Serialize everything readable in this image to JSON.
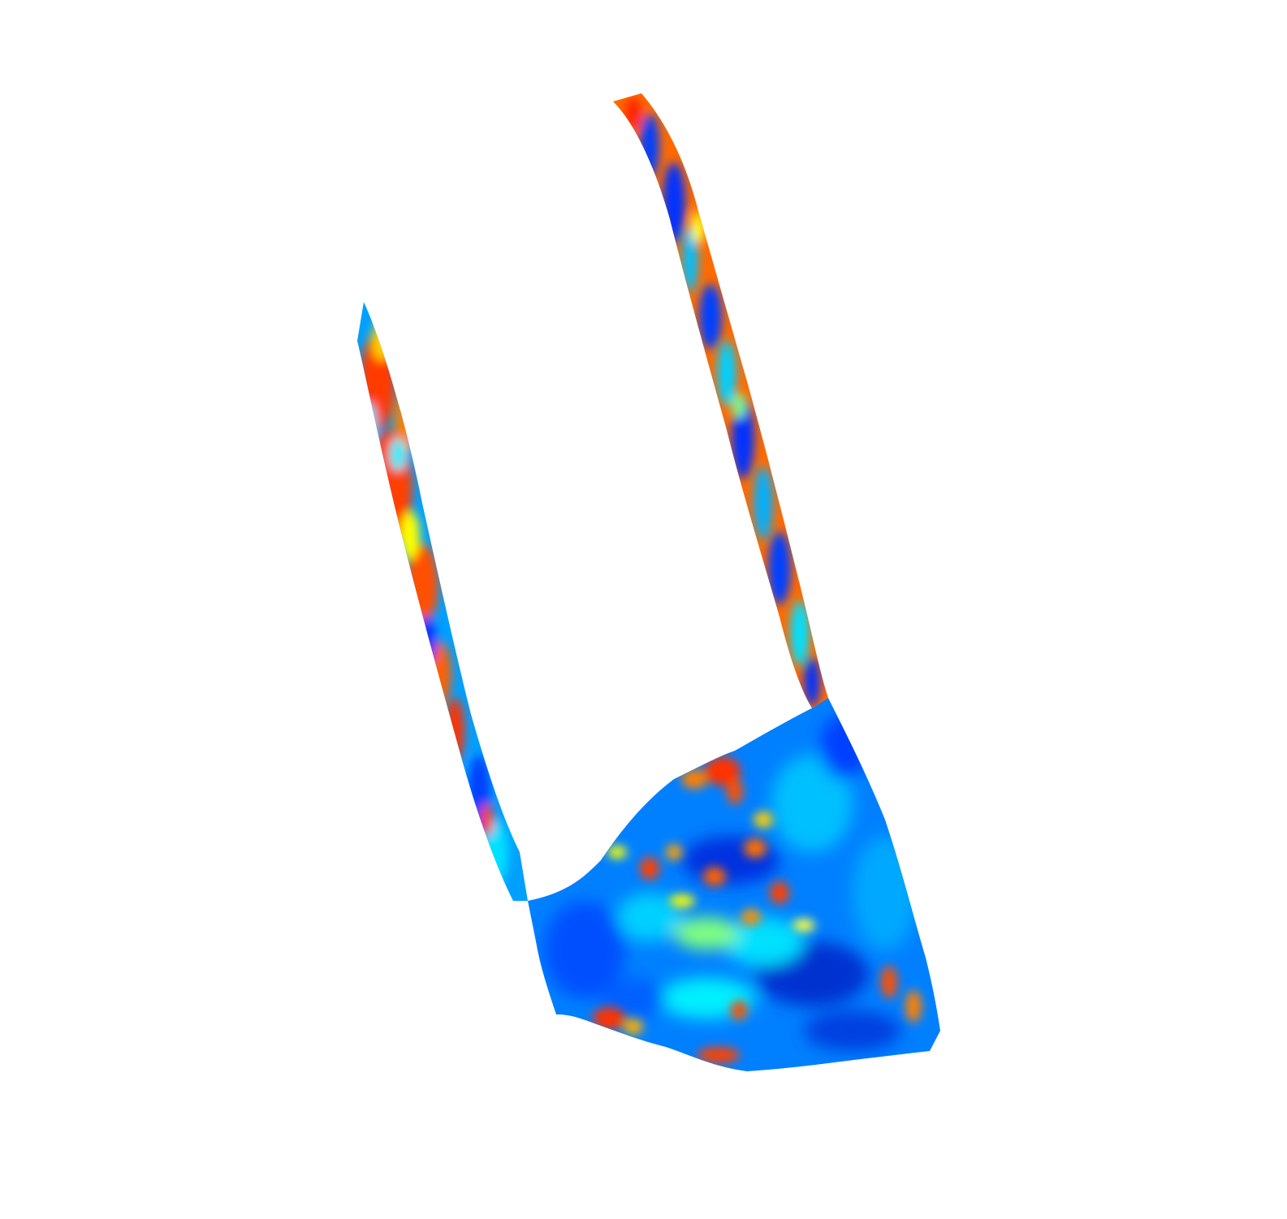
{
  "scene": {
    "background": "#ffffff",
    "colormap": "jet",
    "colormap_stops": [
      "#00008f",
      "#0030ff",
      "#00a0ff",
      "#00f0ff",
      "#80ff80",
      "#ffff00",
      "#ff8000",
      "#ff2000",
      "#a00000"
    ],
    "shapes": [
      "left-fin",
      "right-fin",
      "basin"
    ]
  }
}
